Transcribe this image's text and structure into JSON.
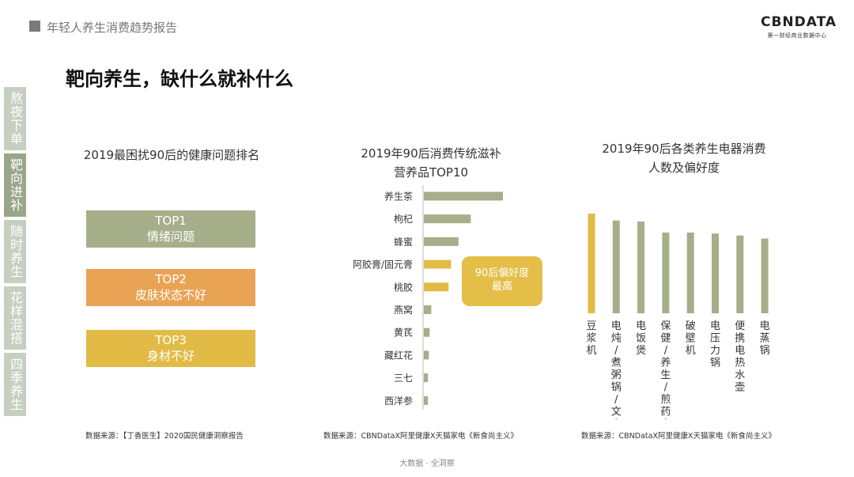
{
  "header": {
    "title": "年轻人养生消费趋势报告"
  },
  "logo": {
    "main": "CBNDATA",
    "sub": "第一财经商业数据中心"
  },
  "page_title": "靶向养生，缺什么就补什么",
  "side_nav": [
    {
      "label": "熬夜下单",
      "active": false
    },
    {
      "label": "靶向进补",
      "active": true
    },
    {
      "label": "随时养生",
      "active": false
    },
    {
      "label": "花样混搭",
      "active": false
    },
    {
      "label": "四季养生",
      "active": false
    }
  ],
  "panel1": {
    "title": "2019最困扰90后的健康问题排名",
    "items": [
      {
        "rank": "TOP1",
        "label": "情绪问题"
      },
      {
        "rank": "TOP2",
        "label": "皮肤状态不好"
      },
      {
        "rank": "TOP3",
        "label": "身材不好"
      }
    ],
    "source": "数据来源：【丁香医生】2020国民健康洞察报告"
  },
  "panel2": {
    "title_line1": "2019年90后消费传统滋补",
    "title_line2": "营养品TOP10",
    "callout_line1": "90后偏好度",
    "callout_line2": "最高",
    "source": "数据来源：CBNDataX阿里健康X天猫家电《新食尚主义》"
  },
  "panel3": {
    "title_line1": "2019年90后各类养生电器消费",
    "title_line2": "人数及偏好度",
    "source": "数据来源：CBNDataX阿里健康X天猫家电《新食尚主义》"
  },
  "footer": "大数据 · 全洞察",
  "colors": {
    "green": "#a6ae8a",
    "yellow": "#e2bb47",
    "orange": "#e8a355"
  },
  "chart_data": [
    {
      "type": "bar",
      "orientation": "horizontal",
      "categories": [
        "养生茶",
        "枸杞",
        "蜂蜜",
        "阿胶膏/固元膏",
        "桃胶",
        "燕窝",
        "黄芪",
        "藏红花",
        "三七",
        "西洋参"
      ],
      "values": [
        96,
        57,
        42,
        33,
        30,
        9,
        7,
        6,
        5,
        5
      ],
      "highlight": [
        3,
        4
      ],
      "colors": {
        "default": "#a6ae8a",
        "highlight": "#e2bb47"
      }
    },
    {
      "type": "bar",
      "orientation": "vertical",
      "categories": [
        "豆浆机",
        "电炖/煮粥锅/文火炉",
        "电饭煲",
        "保健/养生/煎药壶",
        "破壁机",
        "电压力锅",
        "便携电热水壶",
        "电蒸锅"
      ],
      "values": [
        100,
        93,
        92,
        81,
        81,
        80,
        78,
        75
      ],
      "highlight": [
        0
      ],
      "colors": {
        "default": "#a6ae8a",
        "highlight": "#e2bb47"
      }
    }
  ]
}
